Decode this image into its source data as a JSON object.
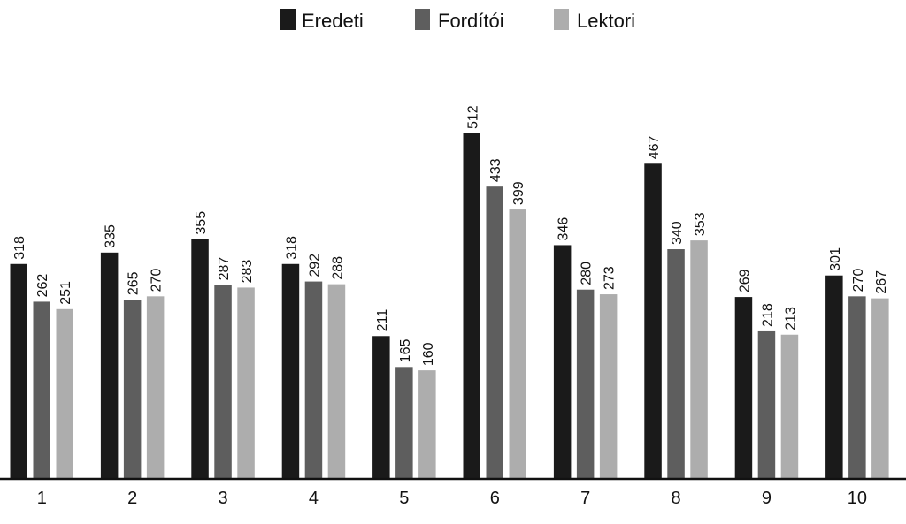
{
  "chart_data": {
    "type": "bar",
    "title": "",
    "xlabel": "",
    "ylabel": "",
    "categories": [
      "1",
      "2",
      "3",
      "4",
      "5",
      "6",
      "7",
      "8",
      "9",
      "10"
    ],
    "series": [
      {
        "name": "Eredeti",
        "color": "#1a1a1a",
        "values": [
          318,
          335,
          355,
          318,
          211,
          512,
          346,
          467,
          269,
          301
        ]
      },
      {
        "name": "Fordítói",
        "color": "#5e5e5e",
        "values": [
          262,
          265,
          287,
          292,
          165,
          433,
          280,
          340,
          218,
          270
        ]
      },
      {
        "name": "Lektori",
        "color": "#adadad",
        "values": [
          251,
          270,
          283,
          288,
          160,
          399,
          273,
          353,
          213,
          267
        ]
      }
    ],
    "ylim": [
      0,
      512
    ],
    "grid": false,
    "legend": "top-center",
    "data_labels": "rotated-above-bars",
    "axis_color": "#111111"
  }
}
